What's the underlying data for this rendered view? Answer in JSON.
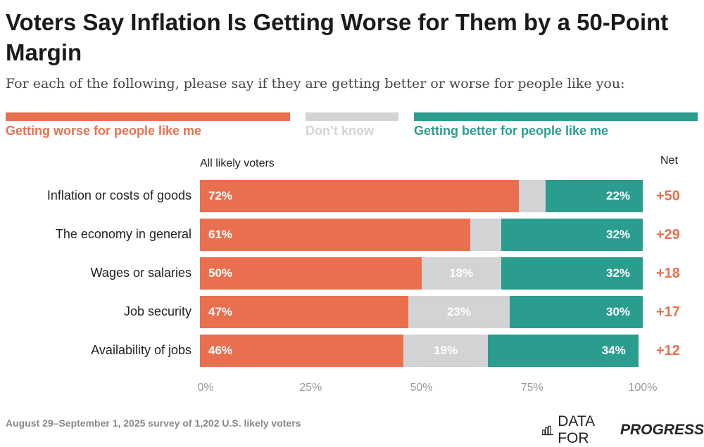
{
  "chart_data": {
    "type": "bar",
    "orientation": "horizontal-stacked",
    "title": "Voters Say Inflation Is Getting Worse for Them by a 50-Point Margin",
    "subtitle": "For each of the following, please say if they are getting better or worse for people like you:",
    "group_label": "All likely voters",
    "net_label": "Net",
    "legend": [
      "Getting worse for people like me",
      "Don’t know",
      "Getting better for people like me"
    ],
    "colors": {
      "worse": "#e8704f",
      "dontknow": "#d2d3d4",
      "better": "#2a9d8f",
      "net": "#e8704f"
    },
    "categories": [
      "Inflation or costs of goods",
      "The economy in general",
      "Wages or salaries",
      "Job security",
      "Availability of jobs"
    ],
    "series": [
      {
        "name": "Getting worse for people like me",
        "values": [
          72,
          61,
          50,
          47,
          46
        ]
      },
      {
        "name": "Don’t know",
        "values": [
          6,
          7,
          18,
          23,
          19
        ]
      },
      {
        "name": "Getting better for people like me",
        "values": [
          22,
          32,
          32,
          30,
          34
        ]
      }
    ],
    "net": [
      "+50",
      "+29",
      "+18",
      "+17",
      "+12"
    ],
    "xlim": [
      0,
      100
    ],
    "xticks": [
      "0%",
      "25%",
      "50%",
      "75%",
      "100%"
    ],
    "source": "August 29–September 1, 2025 survey of 1,202 U.S. likely voters",
    "logo": {
      "text": "DATA FOR",
      "bold": "PROGRESS"
    }
  }
}
